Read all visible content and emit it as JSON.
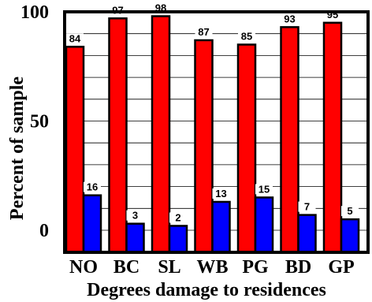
{
  "chart_data": {
    "type": "bar",
    "title": "",
    "xlabel": "Degrees damage to residences",
    "ylabel": "Percent of sample",
    "categories": [
      "NO",
      "BC",
      "SL",
      "WB",
      "PG",
      "BD",
      "GP"
    ],
    "series": [
      {
        "values": [
          84,
          97,
          98,
          87,
          85,
          93,
          95
        ],
        "color": "#ff0000"
      },
      {
        "values": [
          16,
          3,
          2,
          13,
          15,
          7,
          5
        ],
        "color": "#0000ff"
      }
    ],
    "yticks": [
      "0",
      "50",
      "100"
    ],
    "ylim": [
      -10,
      100
    ],
    "grid": true,
    "data_labels": true
  }
}
